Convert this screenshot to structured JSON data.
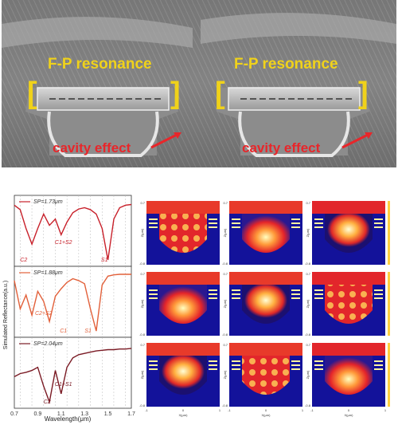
{
  "sem": {
    "label_fp": "F-P resonance",
    "label_cavity": "cavity effect",
    "colors": {
      "fp": "#f0d21a",
      "cavity": "#e8262a"
    }
  },
  "chart_data": {
    "type": "line",
    "xlabel": "Wavelength(μm)",
    "ylabel": "Simulated Reflectance(a.u.)",
    "xlim": [
      0.7,
      1.7
    ],
    "xticks": [
      "0.7",
      "0.9",
      "1.1",
      "1.3",
      "1.5",
      "1.7"
    ],
    "panels": [
      {
        "name": "SP=1.73μm",
        "color": "#c8202a",
        "x": [
          0.7,
          0.75,
          0.8,
          0.85,
          0.9,
          0.95,
          1.0,
          1.05,
          1.1,
          1.15,
          1.2,
          1.25,
          1.3,
          1.35,
          1.4,
          1.45,
          1.5,
          1.55,
          1.6,
          1.65,
          1.7
        ],
        "y": [
          0.92,
          0.85,
          0.55,
          0.3,
          0.55,
          0.78,
          0.6,
          0.7,
          0.45,
          0.65,
          0.8,
          0.86,
          0.88,
          0.85,
          0.78,
          0.55,
          0.05,
          0.7,
          0.88,
          0.92,
          0.93
        ],
        "annotations": [
          {
            "text": "C2",
            "x": 0.78
          },
          {
            "text": "C1+S2",
            "x": 1.12
          },
          {
            "text": "S1",
            "x": 1.47
          }
        ]
      },
      {
        "name": "SP=1.88μm",
        "color": "#e2603a",
        "x": [
          0.7,
          0.75,
          0.8,
          0.85,
          0.9,
          0.95,
          1.0,
          1.05,
          1.1,
          1.15,
          1.2,
          1.25,
          1.3,
          1.35,
          1.4,
          1.45,
          1.5,
          1.55,
          1.6,
          1.65,
          1.7
        ],
        "y": [
          0.85,
          0.4,
          0.62,
          0.3,
          0.68,
          0.52,
          0.2,
          0.6,
          0.72,
          0.82,
          0.88,
          0.85,
          0.8,
          0.4,
          0.05,
          0.78,
          0.92,
          0.94,
          0.95,
          0.95,
          0.95
        ],
        "annotations": [
          {
            "text": "C1",
            "x": 1.12
          },
          {
            "text": "C2+S2",
            "x": 0.95
          },
          {
            "text": "S1",
            "x": 1.33
          }
        ]
      },
      {
        "name": "SP=2.04μm",
        "color": "#7a1a24",
        "x": [
          0.7,
          0.75,
          0.8,
          0.85,
          0.9,
          0.95,
          1.0,
          1.05,
          1.1,
          1.15,
          1.2,
          1.25,
          1.3,
          1.35,
          1.4,
          1.45,
          1.5,
          1.55,
          1.6,
          1.65,
          1.7
        ],
        "y": [
          0.45,
          0.5,
          0.52,
          0.55,
          0.6,
          0.3,
          0.05,
          0.55,
          0.18,
          0.6,
          0.75,
          0.8,
          0.82,
          0.84,
          0.86,
          0.87,
          0.88,
          0.88,
          0.89,
          0.89,
          0.9
        ],
        "annotations": [
          {
            "text": "C2",
            "x": 0.98
          },
          {
            "text": "C1+S1",
            "x": 1.12
          }
        ]
      }
    ]
  },
  "maps": {
    "ylabel": "Z(μm)",
    "xlabel": "X(μm)",
    "xticks": [
      "-1",
      "0",
      "1"
    ],
    "ytick_top": "0.7",
    "ytick_bottom": "-0.8"
  }
}
